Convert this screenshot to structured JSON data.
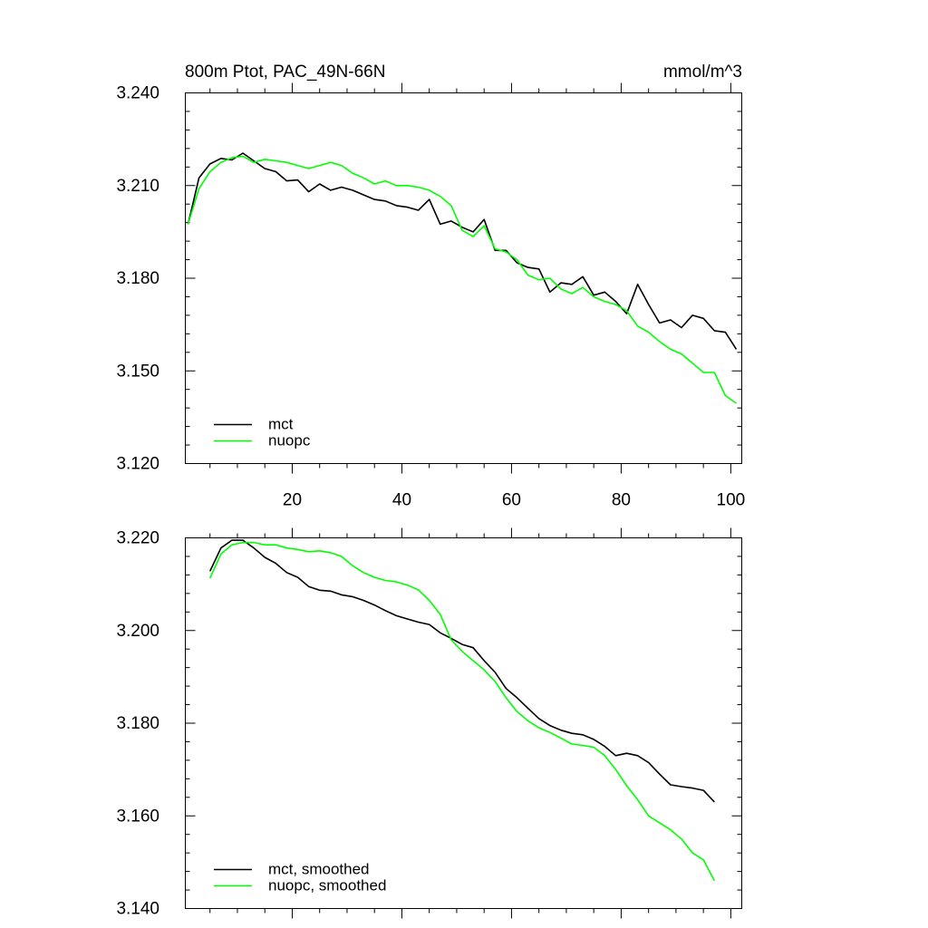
{
  "chart_data": [
    {
      "type": "line",
      "title": "800m Ptot, PAC_49N-66N",
      "units": "mmol/m^3",
      "ylim": [
        3.12,
        3.24
      ],
      "xlim": [
        0.5,
        102
      ],
      "yticks": [
        3.12,
        3.15,
        3.18,
        3.21,
        3.24
      ],
      "ytick_labels": [
        "3.120",
        "3.150",
        "3.180",
        "3.210",
        "3.240"
      ],
      "xticks": [
        20,
        40,
        60,
        80,
        100
      ],
      "xtick_labels": [
        "20",
        "40",
        "60",
        "80",
        "100"
      ],
      "legend": [
        "mct",
        "nuopc"
      ],
      "legend_position": "bottom-left",
      "series": [
        {
          "name": "mct",
          "color": "#000000",
          "x": [
            1,
            3,
            5,
            7,
            9,
            11,
            13,
            15,
            17,
            19,
            21,
            23,
            25,
            27,
            29,
            31,
            33,
            35,
            37,
            39,
            41,
            43,
            45,
            47,
            49,
            51,
            53,
            55,
            57,
            59,
            61,
            63,
            65,
            67,
            69,
            71,
            73,
            75,
            77,
            79,
            81,
            83,
            85,
            87,
            89,
            91,
            93,
            95,
            97,
            99,
            101
          ],
          "values": [
            3.1975,
            3.2125,
            3.217,
            3.2188,
            3.2183,
            3.2205,
            3.218,
            3.2155,
            3.2145,
            3.2115,
            3.2118,
            3.208,
            3.2105,
            3.2085,
            3.2095,
            3.2085,
            3.207,
            3.2055,
            3.205,
            3.2035,
            3.203,
            3.202,
            3.2055,
            3.1975,
            3.1985,
            3.1965,
            3.195,
            3.199,
            3.189,
            3.189,
            3.185,
            3.1835,
            3.183,
            3.1755,
            3.1785,
            3.178,
            3.1805,
            3.1745,
            3.1755,
            3.1725,
            3.1685,
            3.178,
            3.1715,
            3.1655,
            3.1665,
            3.164,
            3.168,
            3.167,
            3.163,
            3.1625,
            3.157
          ]
        },
        {
          "name": "nuopc",
          "color": "#00ff00",
          "x": [
            1,
            3,
            5,
            7,
            9,
            11,
            13,
            15,
            17,
            19,
            21,
            23,
            25,
            27,
            29,
            31,
            33,
            35,
            37,
            39,
            41,
            43,
            45,
            47,
            49,
            51,
            53,
            55,
            57,
            59,
            61,
            63,
            65,
            67,
            69,
            71,
            73,
            75,
            77,
            79,
            81,
            83,
            85,
            87,
            89,
            91,
            93,
            95,
            97,
            99,
            101
          ],
          "values": [
            3.1975,
            3.209,
            3.2145,
            3.2175,
            3.219,
            3.2195,
            3.2175,
            3.2185,
            3.218,
            3.2175,
            3.2165,
            3.2155,
            3.2165,
            3.2175,
            3.2165,
            3.214,
            3.2125,
            3.2105,
            3.2115,
            3.21,
            3.21,
            3.2095,
            3.2085,
            3.2065,
            3.2035,
            3.1955,
            3.1935,
            3.197,
            3.1895,
            3.1885,
            3.186,
            3.181,
            3.1795,
            3.18,
            3.1765,
            3.175,
            3.177,
            3.174,
            3.1725,
            3.1715,
            3.1695,
            3.1645,
            3.1625,
            3.1595,
            3.157,
            3.1555,
            3.1525,
            3.1495,
            3.1495,
            3.142,
            3.1395
          ]
        }
      ]
    },
    {
      "type": "line",
      "title": "",
      "ylim": [
        3.14,
        3.22
      ],
      "xlim": [
        0.5,
        102
      ],
      "yticks": [
        3.14,
        3.16,
        3.18,
        3.2,
        3.22
      ],
      "ytick_labels": [
        "3.140",
        "3.160",
        "3.180",
        "3.200",
        "3.220"
      ],
      "xticks": [
        20,
        40,
        60,
        80,
        100
      ],
      "legend": [
        "mct, smoothed",
        "nuopc, smoothed"
      ],
      "legend_position": "bottom-left",
      "series": [
        {
          "name": "mct, smoothed",
          "color": "#000000",
          "x": [
            5,
            7,
            9,
            11,
            13,
            15,
            17,
            19,
            21,
            23,
            25,
            27,
            29,
            31,
            33,
            35,
            37,
            39,
            41,
            43,
            45,
            47,
            49,
            51,
            53,
            55,
            57,
            59,
            61,
            63,
            65,
            67,
            69,
            71,
            73,
            75,
            77,
            79,
            81,
            83,
            85,
            87,
            89,
            91,
            93,
            95,
            97
          ],
          "values": [
            3.2128,
            3.2178,
            3.2195,
            3.2195,
            3.2178,
            3.2158,
            3.2145,
            3.2125,
            3.2115,
            3.2095,
            3.2087,
            3.2085,
            3.2077,
            3.2073,
            3.2065,
            3.2055,
            3.2043,
            3.2032,
            3.2025,
            3.2018,
            3.2013,
            3.1995,
            3.1983,
            3.197,
            3.1963,
            3.1935,
            3.191,
            3.1875,
            3.1855,
            3.1832,
            3.181,
            3.1795,
            3.1785,
            3.1778,
            3.1775,
            3.1765,
            3.175,
            3.173,
            3.1735,
            3.173,
            3.1715,
            3.169,
            3.1667,
            3.1663,
            3.166,
            3.1655,
            3.163
          ]
        },
        {
          "name": "nuopc, smoothed",
          "color": "#00ff00",
          "x": [
            5,
            7,
            9,
            11,
            13,
            15,
            17,
            19,
            21,
            23,
            25,
            27,
            29,
            31,
            33,
            35,
            37,
            39,
            41,
            43,
            45,
            47,
            49,
            51,
            53,
            55,
            57,
            59,
            61,
            63,
            65,
            67,
            69,
            71,
            73,
            75,
            77,
            79,
            81,
            83,
            85,
            87,
            89,
            91,
            93,
            95,
            97
          ],
          "values": [
            3.2113,
            3.2165,
            3.2185,
            3.219,
            3.219,
            3.2185,
            3.2185,
            3.2178,
            3.2175,
            3.217,
            3.2172,
            3.2168,
            3.216,
            3.214,
            3.2125,
            3.2115,
            3.2108,
            3.2105,
            3.2098,
            3.2088,
            3.2065,
            3.2035,
            3.198,
            3.1955,
            3.1935,
            3.1915,
            3.189,
            3.1855,
            3.1825,
            3.1805,
            3.179,
            3.178,
            3.1768,
            3.1755,
            3.1752,
            3.1748,
            3.173,
            3.17,
            3.1665,
            3.1635,
            3.16,
            3.1585,
            3.157,
            3.155,
            3.152,
            3.1505,
            3.146
          ]
        }
      ]
    }
  ]
}
